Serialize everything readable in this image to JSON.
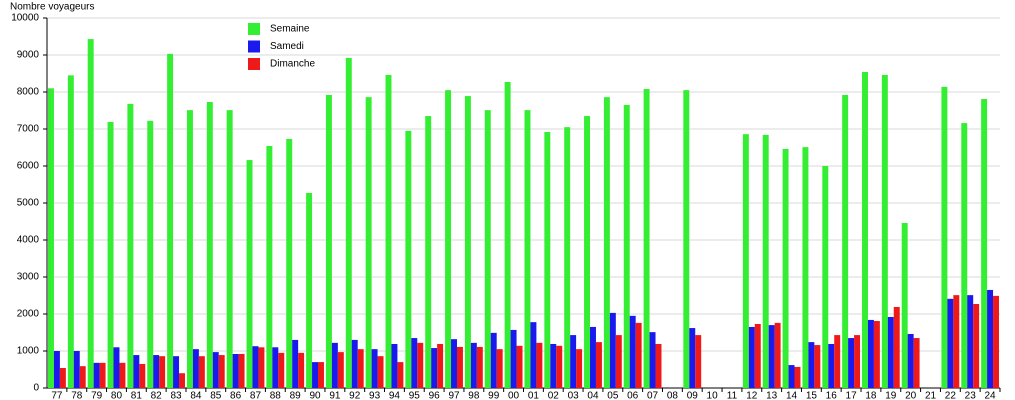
{
  "chart_data": {
    "type": "bar",
    "y_label": "Nombre voyageurs",
    "categories": [
      "77",
      "78",
      "79",
      "80",
      "81",
      "82",
      "83",
      "84",
      "85",
      "86",
      "87",
      "88",
      "89",
      "90",
      "91",
      "92",
      "93",
      "94",
      "95",
      "96",
      "97",
      "98",
      "99",
      "00",
      "01",
      "02",
      "03",
      "04",
      "05",
      "06",
      "07",
      "08",
      "09",
      "10",
      "11",
      "12",
      "13",
      "14",
      "15",
      "16",
      "17",
      "18",
      "19",
      "20",
      "21",
      "22",
      "23",
      "24"
    ],
    "series": [
      {
        "name": "Semaine",
        "color": "#33ee33",
        "values": [
          8100,
          8450,
          9430,
          7190,
          7680,
          7220,
          9030,
          7510,
          7730,
          7510,
          6160,
          6540,
          6730,
          5270,
          7920,
          8920,
          7860,
          8460,
          6950,
          7350,
          8050,
          7890,
          7510,
          8270,
          7510,
          6920,
          7050,
          7350,
          7860,
          7650,
          8080,
          null,
          8050,
          null,
          null,
          6860,
          6840,
          6460,
          6510,
          6000,
          7920,
          8540,
          8460,
          4460,
          null,
          8140,
          7160,
          7810
        ]
      },
      {
        "name": "Samedi",
        "color": "#1a1aee",
        "values": [
          1000,
          1000,
          680,
          1100,
          890,
          890,
          860,
          1050,
          970,
          920,
          1130,
          1100,
          1300,
          700,
          1220,
          1300,
          1050,
          1190,
          1350,
          1080,
          1320,
          1220,
          1490,
          1570,
          1780,
          1190,
          1430,
          1650,
          2030,
          1950,
          1510,
          null,
          1620,
          null,
          null,
          1650,
          1700,
          620,
          1240,
          1190,
          1350,
          1840,
          1920,
          1460,
          null,
          2410,
          2510,
          2650
        ]
      },
      {
        "name": "Dimanche",
        "color": "#ee1a1a",
        "values": [
          540,
          590,
          680,
          680,
          650,
          860,
          400,
          860,
          890,
          920,
          1100,
          950,
          950,
          700,
          970,
          1050,
          860,
          700,
          1220,
          1190,
          1110,
          1110,
          1050,
          1140,
          1220,
          1140,
          1050,
          1240,
          1430,
          1760,
          1190,
          null,
          1430,
          null,
          null,
          1730,
          1760,
          570,
          1160,
          1430,
          1430,
          1810,
          2190,
          1350,
          null,
          2510,
          2270,
          2490
        ]
      }
    ],
    "ylim": [
      0,
      10000
    ],
    "yticks": [
      0,
      1000,
      2000,
      3000,
      4000,
      5000,
      6000,
      7000,
      8000,
      9000,
      10000
    ],
    "grid": true
  }
}
